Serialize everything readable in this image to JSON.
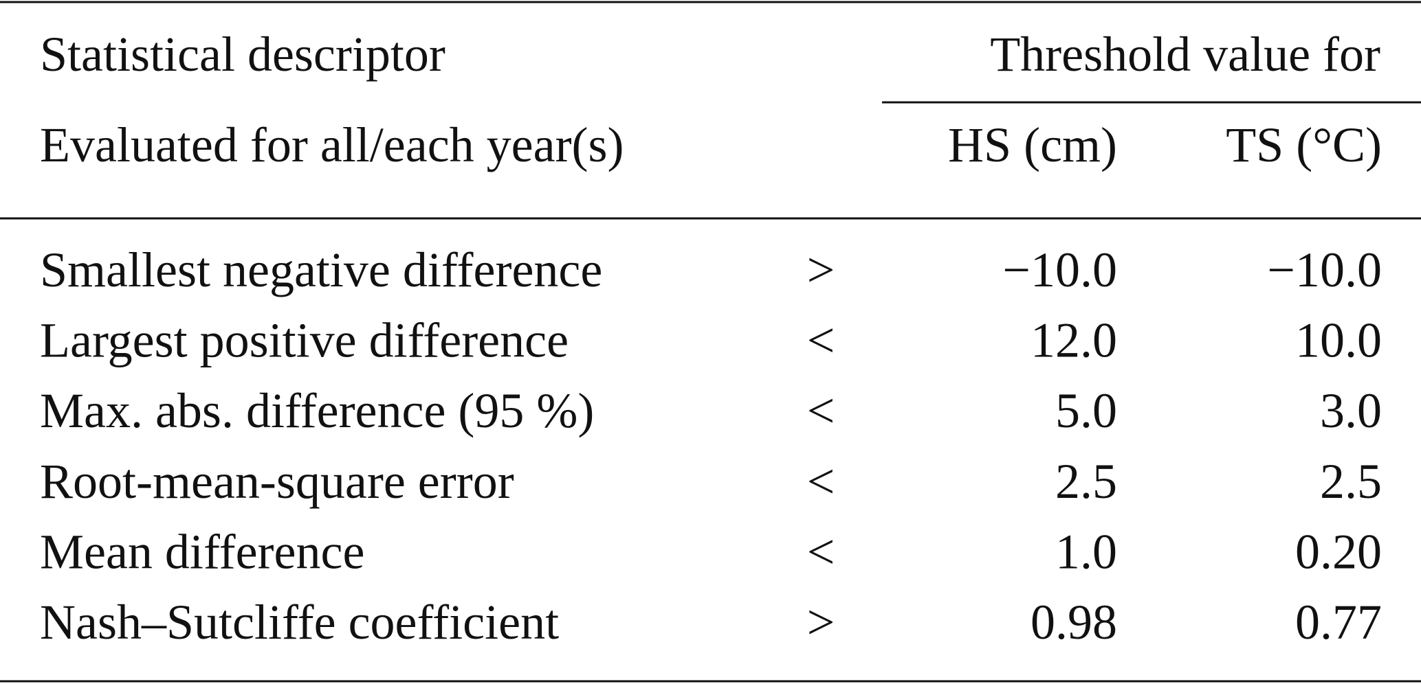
{
  "header": {
    "descriptor": "Statistical descriptor",
    "threshold": "Threshold value for",
    "evaluated": "Evaluated for all/each year(s)",
    "columns": [
      "HS (cm)",
      "TS (°C)"
    ]
  },
  "table": {
    "rows": [
      [
        "Smallest negative difference",
        ">",
        "−10.0",
        "−10.0"
      ],
      [
        "Largest positive difference",
        "<",
        "12.0",
        "10.0"
      ],
      [
        "Max. abs. difference (95 %)",
        "<",
        "5.0",
        "3.0"
      ],
      [
        "Root-mean-square error",
        "<",
        "2.5",
        "2.5"
      ],
      [
        "Mean difference",
        "<",
        "1.0",
        "0.20"
      ],
      [
        "Nash–Sutcliffe coefficient",
        ">",
        "0.98",
        "0.77"
      ]
    ]
  }
}
